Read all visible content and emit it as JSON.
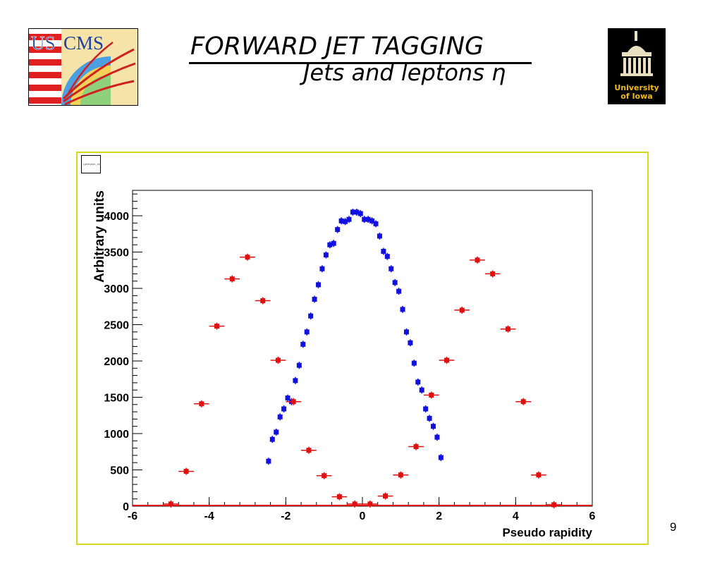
{
  "slide": {
    "title": "FORWARD JET  TAGGING",
    "subtitle": "Jets and leptons η",
    "page_number": "9",
    "stat_box_label": "Ljetlepton_eta"
  },
  "logos": {
    "left": {
      "text_us": "US",
      "text_cms": "CMS"
    },
    "right": {
      "line1": "University",
      "line2": "of Iowa"
    }
  },
  "colors": {
    "series_jets": "#1010e0",
    "series_leptons": "#e01010",
    "frame_border": "#d9d91a"
  },
  "chart_data": {
    "type": "scatter",
    "xlabel": "Pseudo rapidity",
    "ylabel": "Arbitrary units",
    "xlim": [
      -6,
      6
    ],
    "ylim": [
      0,
      4350
    ],
    "x_ticks": [
      -6,
      -4,
      -2,
      0,
      2,
      4,
      6
    ],
    "y_ticks": [
      0,
      500,
      1000,
      1500,
      2000,
      2500,
      3000,
      3500,
      4000
    ],
    "grid": false,
    "series": [
      {
        "color_key": "series_jets",
        "x_err": 0.05,
        "x": [
          -2.45,
          -2.35,
          -2.25,
          -2.15,
          -2.05,
          -1.95,
          -1.85,
          -1.75,
          -1.65,
          -1.55,
          -1.45,
          -1.35,
          -1.25,
          -1.15,
          -1.05,
          -0.95,
          -0.85,
          -0.75,
          -0.65,
          -0.55,
          -0.45,
          -0.35,
          -0.25,
          -0.15,
          -0.05,
          0.05,
          0.15,
          0.25,
          0.35,
          0.45,
          0.55,
          0.65,
          0.75,
          0.85,
          0.95,
          1.05,
          1.15,
          1.25,
          1.35,
          1.45,
          1.55,
          1.65,
          1.75,
          1.85,
          1.95,
          2.05,
          2.15,
          2.25,
          2.35,
          2.45
        ],
        "y": [
          620,
          920,
          1020,
          1230,
          1340,
          1490,
          1440,
          1730,
          1940,
          2230,
          2400,
          2620,
          2850,
          3050,
          3270,
          3460,
          3600,
          3620,
          3810,
          3930,
          3920,
          3950,
          4050,
          4050,
          4030,
          3950,
          3950,
          3930,
          3890,
          3720,
          3510,
          3440,
          3270,
          3080,
          2960,
          2710,
          2400,
          2250,
          1970,
          1710,
          1600,
          1340,
          1210,
          1100,
          950,
          670,
          null,
          null,
          null,
          null
        ]
      },
      {
        "color_key": "series_leptons",
        "x_err": 0.2,
        "x": [
          -5.0,
          -4.6,
          -4.2,
          -3.8,
          -3.4,
          -3.0,
          -2.6,
          -2.2,
          -1.8,
          -1.4,
          -1.0,
          -0.6,
          -0.2,
          0.2,
          0.6,
          1.0,
          1.4,
          1.8,
          2.2,
          2.6,
          3.0,
          3.4,
          3.8,
          4.2,
          4.6,
          5.0
        ],
        "y": [
          30,
          480,
          1410,
          2480,
          3130,
          3430,
          2830,
          2010,
          1440,
          770,
          420,
          130,
          30,
          30,
          140,
          430,
          820,
          1530,
          2010,
          2700,
          3390,
          3200,
          2440,
          1440,
          430,
          20
        ]
      }
    ]
  }
}
